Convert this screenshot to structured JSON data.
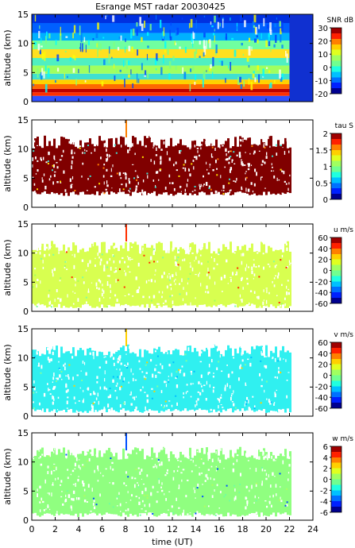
{
  "title": "Esrange MST radar 20030425",
  "xlabel": "time (UT)",
  "x_ticks": [
    "0",
    "2",
    "4",
    "6",
    "8",
    "10",
    "12",
    "14",
    "16",
    "18",
    "20",
    "22",
    "24"
  ],
  "chart_data": [
    {
      "type": "heatmap",
      "id": "snr",
      "ylabel": "altitude (km)",
      "y_ticks": [
        "0",
        "5",
        "10",
        "15"
      ],
      "ylim": [
        0,
        15
      ],
      "xlim": [
        0,
        24
      ],
      "data_extent_x": [
        0,
        22
      ],
      "colorbar": {
        "label": "SNR dB",
        "ticks": [
          "30",
          "20",
          "10",
          "0",
          "-10",
          "-20"
        ],
        "range": [
          -20,
          30
        ]
      },
      "description_values": {
        "low_layer_km": [
          1,
          3
        ],
        "band_km": [
          4,
          13
        ]
      }
    },
    {
      "type": "heatmap",
      "id": "tau",
      "ylabel": "altitude (km)",
      "y_ticks": [
        "0",
        "5",
        "10",
        "15"
      ],
      "ylim": [
        0,
        15
      ],
      "xlim": [
        0,
        24
      ],
      "colorbar": {
        "label": "tau S",
        "ticks": [
          "2",
          "1.5",
          "1",
          "0.5",
          "0"
        ],
        "range": [
          0,
          2
        ]
      }
    },
    {
      "type": "heatmap",
      "id": "u",
      "ylabel": "altitude (km)",
      "y_ticks": [
        "0",
        "5",
        "10",
        "15"
      ],
      "ylim": [
        0,
        15
      ],
      "xlim": [
        0,
        24
      ],
      "colorbar": {
        "label": "u m/s",
        "ticks": [
          "60",
          "40",
          "20",
          "0",
          "-20",
          "-40",
          "-60"
        ],
        "range": [
          -60,
          60
        ]
      }
    },
    {
      "type": "heatmap",
      "id": "v",
      "ylabel": "altitude (km)",
      "y_ticks": [
        "0",
        "5",
        "10",
        "15"
      ],
      "ylim": [
        0,
        15
      ],
      "xlim": [
        0,
        24
      ],
      "colorbar": {
        "label": "v m/s",
        "ticks": [
          "60",
          "40",
          "20",
          "0",
          "-20",
          "-40",
          "-60"
        ],
        "range": [
          -60,
          60
        ]
      }
    },
    {
      "type": "heatmap",
      "id": "w",
      "ylabel": "altitude (km)",
      "y_ticks": [
        "0",
        "5",
        "10",
        "15"
      ],
      "ylim": [
        0,
        15
      ],
      "xlim": [
        0,
        24
      ],
      "colorbar": {
        "label": "w m/s",
        "ticks": [
          "6",
          "4",
          "2",
          "0",
          "-2",
          "-4",
          "-6"
        ],
        "range": [
          -6,
          6
        ]
      }
    }
  ]
}
